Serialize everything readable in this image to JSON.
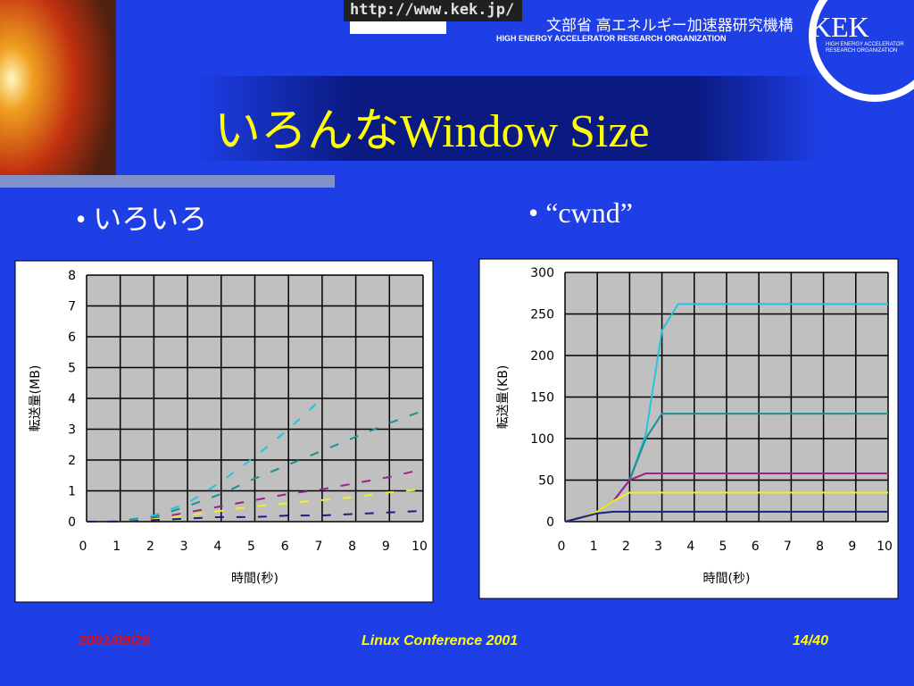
{
  "header": {
    "url": "http://www.kek.jp/",
    "org_jp": "文部省 高エネルギー加速器研究機構",
    "org_en": "HIGH ENERGY ACCELERATOR RESEARCH ORGANIZATION",
    "logo": "KEK",
    "logo_sub": "HIGH ENERGY ACCELERATOR RESEARCH ORGANIZATION"
  },
  "title": "いろんなWindow Size",
  "bullets": [
    "いろいろ",
    "“cwnd”"
  ],
  "footer": {
    "date": "2001/09/28",
    "event": "Linux Conference 2001",
    "page": "14/40"
  },
  "chart_data": [
    {
      "type": "line",
      "line_style": "dashed",
      "grid": true,
      "xlabel": "時間(秒)",
      "ylabel": "転送量(MB)",
      "x": [
        0,
        1,
        2,
        3,
        4,
        5,
        6,
        7,
        8,
        9,
        10
      ],
      "xlim": [
        0,
        10
      ],
      "xticks": [
        0,
        1,
        2,
        3,
        4,
        5,
        6,
        7,
        8,
        9,
        10
      ],
      "ylim": [
        0,
        8
      ],
      "yticks": [
        0,
        1,
        2,
        3,
        4,
        5,
        6,
        7,
        8
      ],
      "series": [
        {
          "color": "#22c4e0",
          "values": [
            0,
            0.02,
            0.2,
            0.6,
            1.3,
            2.1,
            3.0,
            4.0,
            null,
            null,
            null
          ]
        },
        {
          "color": "#1a9090",
          "values": [
            0,
            0.02,
            0.15,
            0.5,
            0.9,
            1.4,
            1.85,
            2.3,
            2.75,
            3.2,
            3.6
          ]
        },
        {
          "color": "#a0208a",
          "values": [
            0,
            0.01,
            0.1,
            0.3,
            0.5,
            0.7,
            0.9,
            1.05,
            1.25,
            1.45,
            1.7
          ]
        },
        {
          "color": "#f0f020",
          "values": [
            0,
            0.01,
            0.08,
            0.2,
            0.35,
            0.5,
            0.6,
            0.7,
            0.8,
            0.95,
            1.05
          ]
        },
        {
          "color": "#1a2080",
          "values": [
            0,
            0,
            0.05,
            0.1,
            0.15,
            0.15,
            0.2,
            0.2,
            0.25,
            0.3,
            0.35
          ]
        }
      ]
    },
    {
      "type": "line",
      "line_style": "solid",
      "grid": true,
      "xlabel": "時間(秒)",
      "ylabel": "転送量(KB)",
      "x": [
        0,
        0.5,
        1,
        1.5,
        2,
        2.5,
        3,
        3.5,
        4,
        5,
        6,
        7,
        8,
        9,
        10
      ],
      "xlim": [
        0,
        10
      ],
      "xticks": [
        0,
        1,
        2,
        3,
        4,
        5,
        6,
        7,
        8,
        9,
        10
      ],
      "ylim": [
        0,
        300
      ],
      "yticks": [
        0,
        50,
        100,
        150,
        200,
        250,
        300
      ],
      "series": [
        {
          "color": "#22c4e0",
          "values": [
            0,
            5,
            12,
            25,
            50,
            105,
            230,
            262,
            262,
            262,
            262,
            262,
            262,
            262,
            262
          ]
        },
        {
          "color": "#1a9090",
          "values": [
            0,
            5,
            12,
            25,
            50,
            100,
            130,
            130,
            130,
            130,
            130,
            130,
            130,
            130,
            130
          ]
        },
        {
          "color": "#a0208a",
          "values": [
            0,
            5,
            12,
            25,
            50,
            58,
            58,
            58,
            58,
            58,
            58,
            58,
            58,
            58,
            58
          ]
        },
        {
          "color": "#f0f020",
          "values": [
            0,
            5,
            12,
            25,
            35,
            35,
            35,
            35,
            35,
            35,
            35,
            35,
            35,
            35,
            35
          ]
        },
        {
          "color": "#1a2080",
          "values": [
            0,
            5,
            10,
            12,
            12,
            12,
            12,
            12,
            12,
            12,
            12,
            12,
            12,
            12,
            12
          ]
        }
      ]
    }
  ]
}
